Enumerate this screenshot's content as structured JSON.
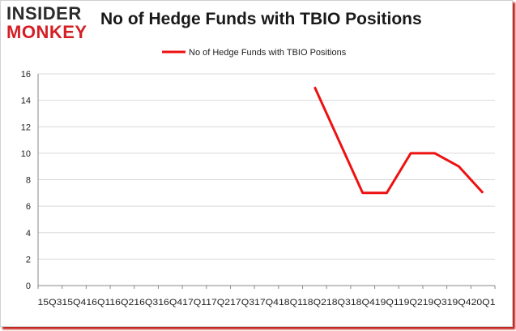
{
  "logo": {
    "line1": "INSIDER",
    "line2": "MONKEY"
  },
  "colors": {
    "series": "#ee1111",
    "grid": "#d9d9d9",
    "axis": "#888888",
    "brand_red": "#d41f26"
  },
  "chart_data": {
    "type": "line",
    "title": "No of Hedge Funds with TBIO Positions",
    "xlabel": "",
    "ylabel": "",
    "ylim": [
      0,
      16
    ],
    "yticks": [
      0,
      2,
      4,
      6,
      8,
      10,
      12,
      14,
      16
    ],
    "grid": true,
    "legend": "top-center",
    "categories": [
      "15Q3",
      "15Q4",
      "16Q1",
      "16Q2",
      "16Q3",
      "16Q4",
      "17Q1",
      "17Q2",
      "17Q3",
      "17Q4",
      "18Q1",
      "18Q2",
      "18Q3",
      "18Q4",
      "19Q1",
      "19Q2",
      "19Q3",
      "19Q4",
      "20Q1"
    ],
    "x_axis_text": "15Q315Q416Q116Q216Q316Q417Q117Q217Q317Q418Q118Q218Q318Q419Q119Q219Q319Q420Q1",
    "series": [
      {
        "name": "No of Hedge Funds with TBIO Positions",
        "values": [
          null,
          null,
          null,
          null,
          null,
          null,
          null,
          null,
          null,
          null,
          null,
          15,
          11,
          7,
          7,
          10,
          10,
          9,
          7
        ]
      }
    ]
  }
}
